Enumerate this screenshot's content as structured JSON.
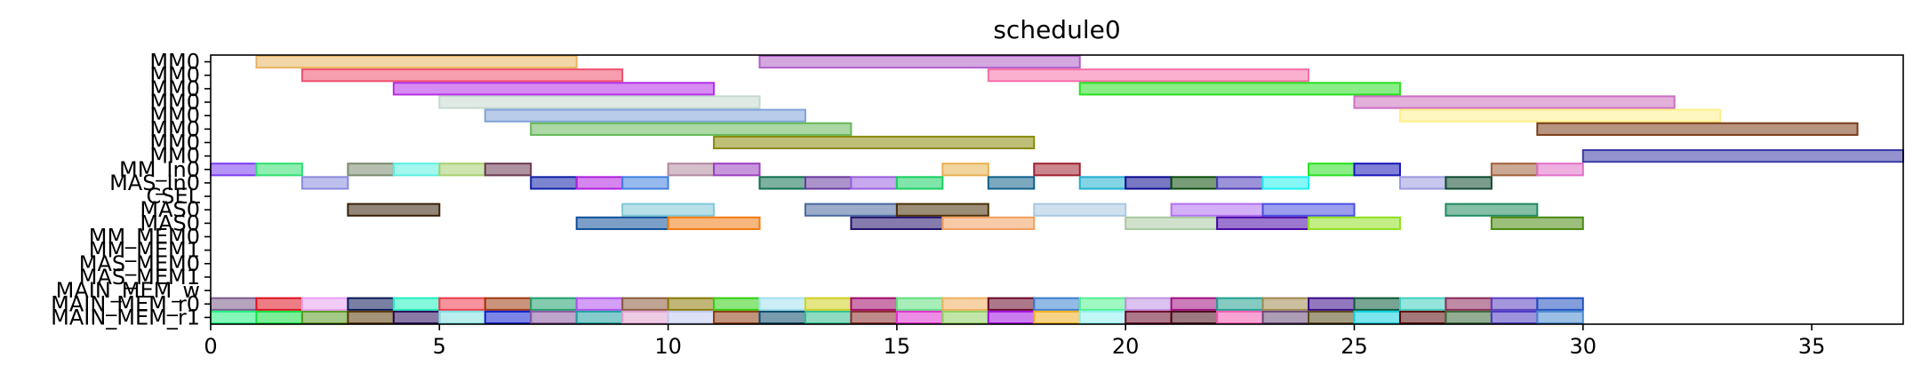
{
  "chart_data": {
    "type": "gantt",
    "title": "schedule0",
    "xlabel": "",
    "ylabel": "",
    "xlim": [
      0,
      37
    ],
    "x_ticks": [
      0,
      5,
      10,
      15,
      20,
      25,
      30,
      35
    ],
    "grid": false,
    "rows": [
      "MM0",
      "MM0",
      "MM0",
      "MM0",
      "MM0",
      "MM0",
      "MM0",
      "MM0",
      "MM_In0",
      "MAS_In0",
      "CSEL",
      "MAS0",
      "MAS0",
      "MM_MEM0",
      "MM_MEM1",
      "MAS_MEM0",
      "MAS_MEM1",
      "MAIN_MEM_w",
      "MAIN_MEM_r0",
      "MAIN_MEM_r1"
    ],
    "tasks": [
      {
        "row": 0,
        "start": 1,
        "end": 8,
        "color": "#e8b560"
      },
      {
        "row": 0,
        "start": 12,
        "end": 19,
        "color": "#b05fc8"
      },
      {
        "row": 1,
        "start": 2,
        "end": 9,
        "color": "#f0506e"
      },
      {
        "row": 1,
        "start": 17,
        "end": 24,
        "color": "#f76fa8"
      },
      {
        "row": 2,
        "start": 4,
        "end": 11,
        "color": "#b52ee8"
      },
      {
        "row": 2,
        "start": 19,
        "end": 26,
        "color": "#28e020"
      },
      {
        "row": 3,
        "start": 5,
        "end": 12,
        "color": "#c6d9cf"
      },
      {
        "row": 3,
        "start": 25,
        "end": 32,
        "color": "#cc6fbf"
      },
      {
        "row": 4,
        "start": 6,
        "end": 13,
        "color": "#7fa3d8"
      },
      {
        "row": 4,
        "start": 26,
        "end": 33,
        "color": "#fff08a"
      },
      {
        "row": 5,
        "start": 7,
        "end": 14,
        "color": "#66b85a"
      },
      {
        "row": 5,
        "start": 29,
        "end": 36,
        "color": "#7a3d18"
      },
      {
        "row": 6,
        "start": 11,
        "end": 18,
        "color": "#8a8a0a"
      },
      {
        "row": 7,
        "start": 30,
        "end": 37,
        "color": "#3a3aa8"
      },
      {
        "row": 8,
        "start": 0,
        "end": 1,
        "color": "#7a3cf0"
      },
      {
        "row": 8,
        "start": 1,
        "end": 2,
        "color": "#30e070"
      },
      {
        "row": 8,
        "start": 3,
        "end": 4,
        "color": "#7a8a70"
      },
      {
        "row": 8,
        "start": 4,
        "end": 5,
        "color": "#5af0e0"
      },
      {
        "row": 8,
        "start": 5,
        "end": 6,
        "color": "#a8d070"
      },
      {
        "row": 8,
        "start": 6,
        "end": 7,
        "color": "#6a3a50"
      },
      {
        "row": 8,
        "start": 10,
        "end": 11,
        "color": "#b08aa0"
      },
      {
        "row": 8,
        "start": 11,
        "end": 12,
        "color": "#9a40c0"
      },
      {
        "row": 8,
        "start": 16,
        "end": 17,
        "color": "#e8b050"
      },
      {
        "row": 8,
        "start": 18,
        "end": 19,
        "color": "#a02030"
      },
      {
        "row": 8,
        "start": 24,
        "end": 25,
        "color": "#28e020"
      },
      {
        "row": 8,
        "start": 25,
        "end": 26,
        "color": "#1818b8"
      },
      {
        "row": 8,
        "start": 28,
        "end": 29,
        "color": "#a0603a"
      },
      {
        "row": 8,
        "start": 29,
        "end": 30,
        "color": "#e070c8"
      },
      {
        "row": 9,
        "start": 2,
        "end": 3,
        "color": "#8a8ae0"
      },
      {
        "row": 9,
        "start": 7,
        "end": 8,
        "color": "#1020a8"
      },
      {
        "row": 9,
        "start": 8,
        "end": 9,
        "color": "#b020e0"
      },
      {
        "row": 9,
        "start": 9,
        "end": 10,
        "color": "#4080e0"
      },
      {
        "row": 9,
        "start": 12,
        "end": 13,
        "color": "#107050"
      },
      {
        "row": 9,
        "start": 13,
        "end": 14,
        "color": "#6a3aa0"
      },
      {
        "row": 9,
        "start": 14,
        "end": 15,
        "color": "#9a60e0"
      },
      {
        "row": 9,
        "start": 15,
        "end": 16,
        "color": "#18d060"
      },
      {
        "row": 9,
        "start": 17,
        "end": 18,
        "color": "#10608a"
      },
      {
        "row": 9,
        "start": 19,
        "end": 20,
        "color": "#20b0d0"
      },
      {
        "row": 9,
        "start": 20,
        "end": 21,
        "color": "#0a0a90"
      },
      {
        "row": 9,
        "start": 21,
        "end": 22,
        "color": "#0a4a0a"
      },
      {
        "row": 9,
        "start": 22,
        "end": 23,
        "color": "#4a3ab8"
      },
      {
        "row": 9,
        "start": 23,
        "end": 24,
        "color": "#20f0f0"
      },
      {
        "row": 9,
        "start": 26,
        "end": 27,
        "color": "#9a9ae0"
      },
      {
        "row": 9,
        "start": 27,
        "end": 28,
        "color": "#104a30"
      },
      {
        "row": 11,
        "start": 3,
        "end": 5,
        "color": "#3a2008"
      },
      {
        "row": 11,
        "start": 9,
        "end": 11,
        "color": "#80c8d8"
      },
      {
        "row": 11,
        "start": 13,
        "end": 15,
        "color": "#4a6aa0"
      },
      {
        "row": 11,
        "start": 15,
        "end": 17,
        "color": "#4a3008"
      },
      {
        "row": 11,
        "start": 18,
        "end": 20,
        "color": "#a8c8e0"
      },
      {
        "row": 11,
        "start": 21,
        "end": 23,
        "color": "#b070f0"
      },
      {
        "row": 11,
        "start": 23,
        "end": 25,
        "color": "#4a50e0"
      },
      {
        "row": 11,
        "start": 27,
        "end": 29,
        "color": "#208a60"
      },
      {
        "row": 12,
        "start": 8,
        "end": 10,
        "color": "#10509a"
      },
      {
        "row": 12,
        "start": 10,
        "end": 12,
        "color": "#f07a10"
      },
      {
        "row": 12,
        "start": 14,
        "end": 16,
        "color": "#20106a"
      },
      {
        "row": 12,
        "start": 16,
        "end": 18,
        "color": "#f0a060"
      },
      {
        "row": 12,
        "start": 20,
        "end": 22,
        "color": "#a8c8a0"
      },
      {
        "row": 12,
        "start": 22,
        "end": 24,
        "color": "#4a08a8"
      },
      {
        "row": 12,
        "start": 24,
        "end": 26,
        "color": "#90e020"
      },
      {
        "row": 12,
        "start": 28,
        "end": 30,
        "color": "#4a8a10"
      },
      {
        "row": 18,
        "start": 0,
        "end": 1,
        "color": "#7a5a8a"
      },
      {
        "row": 18,
        "start": 1,
        "end": 2,
        "color": "#e01020"
      },
      {
        "row": 18,
        "start": 2,
        "end": 3,
        "color": "#e8a0f0"
      },
      {
        "row": 18,
        "start": 3,
        "end": 4,
        "color": "#0a1a5a"
      },
      {
        "row": 18,
        "start": 4,
        "end": 5,
        "color": "#20f0c0"
      },
      {
        "row": 18,
        "start": 5,
        "end": 6,
        "color": "#f03a4a"
      },
      {
        "row": 18,
        "start": 6,
        "end": 7,
        "color": "#a03a10"
      },
      {
        "row": 18,
        "start": 7,
        "end": 8,
        "color": "#20a070"
      },
      {
        "row": 18,
        "start": 8,
        "end": 9,
        "color": "#b050f0"
      },
      {
        "row": 18,
        "start": 9,
        "end": 10,
        "color": "#8a5a3a"
      },
      {
        "row": 18,
        "start": 10,
        "end": 11,
        "color": "#8a7a08"
      },
      {
        "row": 18,
        "start": 11,
        "end": 12,
        "color": "#30d010"
      },
      {
        "row": 18,
        "start": 12,
        "end": 13,
        "color": "#a0e0f0"
      },
      {
        "row": 18,
        "start": 13,
        "end": 14,
        "color": "#d0d020"
      },
      {
        "row": 18,
        "start": 14,
        "end": 15,
        "color": "#a00a6a"
      },
      {
        "row": 18,
        "start": 15,
        "end": 16,
        "color": "#60e080"
      },
      {
        "row": 18,
        "start": 16,
        "end": 17,
        "color": "#f0b060"
      },
      {
        "row": 18,
        "start": 17,
        "end": 18,
        "color": "#6a0a2a"
      },
      {
        "row": 18,
        "start": 18,
        "end": 19,
        "color": "#3a80d0"
      },
      {
        "row": 18,
        "start": 19,
        "end": 20,
        "color": "#50f090"
      },
      {
        "row": 18,
        "start": 20,
        "end": 21,
        "color": "#c090e0"
      },
      {
        "row": 18,
        "start": 21,
        "end": 22,
        "color": "#a01080"
      },
      {
        "row": 18,
        "start": 22,
        "end": 23,
        "color": "#20a090"
      },
      {
        "row": 18,
        "start": 23,
        "end": 24,
        "color": "#a08a50"
      },
      {
        "row": 18,
        "start": 24,
        "end": 25,
        "color": "#3a0a8a"
      },
      {
        "row": 18,
        "start": 25,
        "end": 26,
        "color": "#0a5a3a"
      },
      {
        "row": 18,
        "start": 26,
        "end": 27,
        "color": "#40d0c0"
      },
      {
        "row": 18,
        "start": 27,
        "end": 28,
        "color": "#8a2a5a"
      },
      {
        "row": 18,
        "start": 28,
        "end": 29,
        "color": "#5a40c0"
      },
      {
        "row": 18,
        "start": 29,
        "end": 30,
        "color": "#2050c0"
      },
      {
        "row": 19,
        "start": 0,
        "end": 1,
        "color": "#20f080"
      },
      {
        "row": 19,
        "start": 1,
        "end": 2,
        "color": "#10e040"
      },
      {
        "row": 19,
        "start": 2,
        "end": 3,
        "color": "#5a9a20"
      },
      {
        "row": 19,
        "start": 3,
        "end": 4,
        "color": "#5a3a08"
      },
      {
        "row": 19,
        "start": 4,
        "end": 5,
        "color": "#2a0a5a"
      },
      {
        "row": 19,
        "start": 5,
        "end": 6,
        "color": "#80e0e0"
      },
      {
        "row": 19,
        "start": 6,
        "end": 7,
        "color": "#1020d0"
      },
      {
        "row": 19,
        "start": 7,
        "end": 8,
        "color": "#8a5aa0"
      },
      {
        "row": 19,
        "start": 8,
        "end": 9,
        "color": "#20a0a0"
      },
      {
        "row": 19,
        "start": 9,
        "end": 10,
        "color": "#e0a0d0"
      },
      {
        "row": 19,
        "start": 10,
        "end": 11,
        "color": "#c0c8f0"
      },
      {
        "row": 19,
        "start": 11,
        "end": 12,
        "color": "#8a3a10"
      },
      {
        "row": 19,
        "start": 12,
        "end": 13,
        "color": "#0a4a6a"
      },
      {
        "row": 19,
        "start": 13,
        "end": 14,
        "color": "#30c090"
      },
      {
        "row": 19,
        "start": 14,
        "end": 15,
        "color": "#8a2a2a"
      },
      {
        "row": 19,
        "start": 15,
        "end": 16,
        "color": "#e030d0"
      },
      {
        "row": 19,
        "start": 16,
        "end": 17,
        "color": "#90d060"
      },
      {
        "row": 19,
        "start": 17,
        "end": 18,
        "color": "#a010e0"
      },
      {
        "row": 19,
        "start": 18,
        "end": 19,
        "color": "#f0b020"
      },
      {
        "row": 19,
        "start": 19,
        "end": 20,
        "color": "#90f0f0"
      },
      {
        "row": 19,
        "start": 20,
        "end": 21,
        "color": "#6a0a2a"
      },
      {
        "row": 19,
        "start": 21,
        "end": 22,
        "color": "#4a0a1a"
      },
      {
        "row": 19,
        "start": 22,
        "end": 23,
        "color": "#f05ab0"
      },
      {
        "row": 19,
        "start": 23,
        "end": 24,
        "color": "#6a4a7a"
      },
      {
        "row": 19,
        "start": 24,
        "end": 25,
        "color": "#5a4a1a"
      },
      {
        "row": 19,
        "start": 25,
        "end": 26,
        "color": "#10d0e0"
      },
      {
        "row": 19,
        "start": 26,
        "end": 27,
        "color": "#5a0a0a"
      },
      {
        "row": 19,
        "start": 27,
        "end": 28,
        "color": "#3a6a3a"
      },
      {
        "row": 19,
        "start": 28,
        "end": 29,
        "color": "#4a3ac0"
      },
      {
        "row": 19,
        "start": 29,
        "end": 30,
        "color": "#4a8ad0"
      }
    ]
  }
}
